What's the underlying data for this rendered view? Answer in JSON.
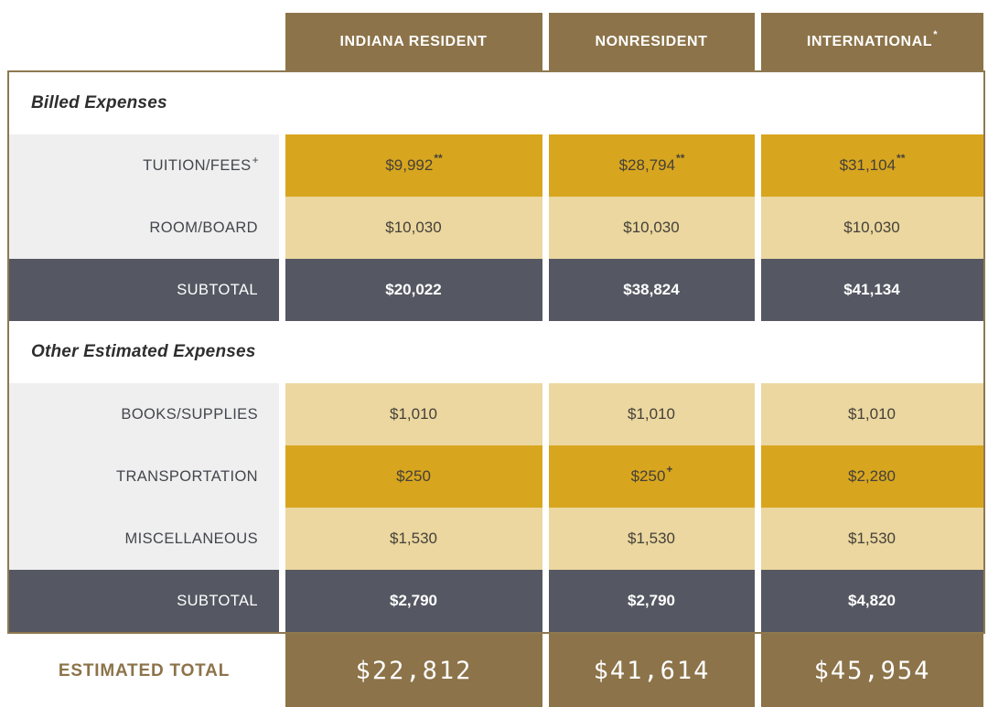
{
  "header": {
    "columns": [
      {
        "label": "INDIANA RESIDENT",
        "sup": ""
      },
      {
        "label": "NONRESIDENT",
        "sup": ""
      },
      {
        "label": "INTERNATIONAL",
        "sup": "*"
      }
    ]
  },
  "sections": [
    {
      "title": "Billed Expenses",
      "rows": [
        {
          "label": "TUITION/FEES",
          "label_sup": "+",
          "values": [
            {
              "text": "$9,992",
              "sup": "**"
            },
            {
              "text": "$28,794",
              "sup": "**"
            },
            {
              "text": "$31,104",
              "sup": "**"
            }
          ]
        },
        {
          "label": "ROOM/BOARD",
          "label_sup": "",
          "values": [
            {
              "text": "$10,030",
              "sup": ""
            },
            {
              "text": "$10,030",
              "sup": ""
            },
            {
              "text": "$10,030",
              "sup": ""
            }
          ]
        },
        {
          "label": "SUBTOTAL",
          "label_sup": "",
          "values": [
            {
              "text": "$20,022",
              "sup": ""
            },
            {
              "text": "$38,824",
              "sup": ""
            },
            {
              "text": "$41,134",
              "sup": ""
            }
          ]
        }
      ]
    },
    {
      "title": "Other Estimated Expenses",
      "rows": [
        {
          "label": "BOOKS/SUPPLIES",
          "label_sup": "",
          "values": [
            {
              "text": "$1,010",
              "sup": ""
            },
            {
              "text": "$1,010",
              "sup": ""
            },
            {
              "text": "$1,010",
              "sup": ""
            }
          ]
        },
        {
          "label": "TRANSPORTATION",
          "label_sup": "",
          "values": [
            {
              "text": "$250",
              "sup": ""
            },
            {
              "text": "$250",
              "sup": "+"
            },
            {
              "text": "$2,280",
              "sup": ""
            }
          ]
        },
        {
          "label": "MISCELLANEOUS",
          "label_sup": "",
          "values": [
            {
              "text": "$1,530",
              "sup": ""
            },
            {
              "text": "$1,530",
              "sup": ""
            },
            {
              "text": "$1,530",
              "sup": ""
            }
          ]
        },
        {
          "label": "SUBTOTAL",
          "label_sup": "",
          "values": [
            {
              "text": "$2,790",
              "sup": ""
            },
            {
              "text": "$2,790",
              "sup": ""
            },
            {
              "text": "$4,820",
              "sup": ""
            }
          ]
        }
      ]
    }
  ],
  "total": {
    "label": "ESTIMATED TOTAL",
    "values": [
      "$22,812",
      "$41,614",
      "$45,954"
    ]
  },
  "colors": {
    "header_brown": "#8C7349",
    "gold": "#D8A61E",
    "tan": "#EBD79F",
    "label_gray": "#EFEFEF",
    "dark_slate": "#555862",
    "border_brown": "#8F7850",
    "total_brown": "#8C7349",
    "white": "#FFFFFF"
  },
  "chart_data": {
    "type": "table",
    "title": "Estimated Cost of Attendance",
    "columns": [
      "INDIANA RESIDENT",
      "NONRESIDENT",
      "INTERNATIONAL*"
    ],
    "sections": [
      {
        "title": "Billed Expenses",
        "rows": [
          {
            "label": "TUITION/FEES+",
            "values": [
              9992,
              28794,
              31104
            ],
            "note": "**"
          },
          {
            "label": "ROOM/BOARD",
            "values": [
              10030,
              10030,
              10030
            ]
          },
          {
            "label": "SUBTOTAL",
            "values": [
              20022,
              38824,
              41134
            ]
          }
        ]
      },
      {
        "title": "Other Estimated Expenses",
        "rows": [
          {
            "label": "BOOKS/SUPPLIES",
            "values": [
              1010,
              1010,
              1010
            ]
          },
          {
            "label": "TRANSPORTATION",
            "values": [
              250,
              250,
              2280
            ],
            "note": "+ on nonresident value"
          },
          {
            "label": "MISCELLANEOUS",
            "values": [
              1530,
              1530,
              1530
            ]
          },
          {
            "label": "SUBTOTAL",
            "values": [
              2790,
              2790,
              4820
            ]
          }
        ]
      }
    ],
    "total": {
      "label": "ESTIMATED TOTAL",
      "values": [
        22812,
        41614,
        45954
      ]
    }
  }
}
